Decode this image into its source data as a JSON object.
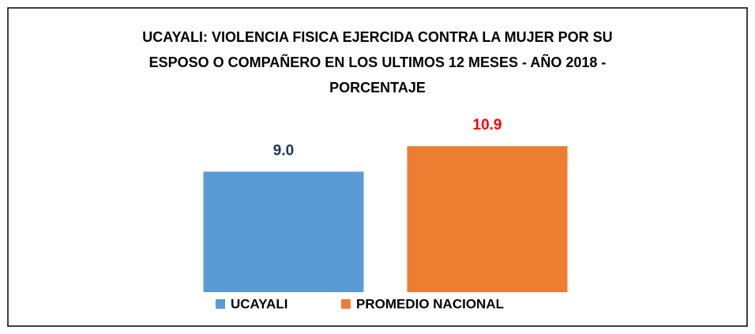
{
  "chart_data": {
    "type": "bar",
    "title": [
      "UCAYALI: VIOLENCIA FISICA EJERCIDA CONTRA LA MUJER POR SU",
      "ESPOSO O COMPAÑERO EN LOS ULTIMOS 12 MESES - AÑO 2018 -",
      "PORCENTAJE"
    ],
    "series": [
      {
        "name": "UCAYALI",
        "color": "#5b9bd5",
        "label_color": "#1f3864",
        "values": [
          9.0
        ],
        "value_labels": [
          "9.0"
        ]
      },
      {
        "name": "PROMEDIO NACIONAL",
        "color": "#ed7d31",
        "label_color": "#ff0000",
        "values": [
          10.9
        ],
        "value_labels": [
          "10.9"
        ]
      }
    ],
    "ylim": [
      0,
      12.5
    ],
    "legend": "bottom"
  }
}
